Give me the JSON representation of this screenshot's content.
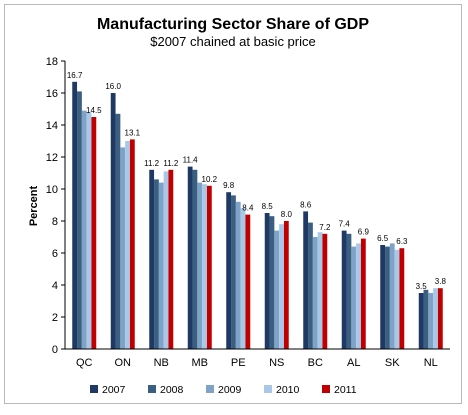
{
  "chart_data": {
    "type": "bar",
    "title": "Manufacturing Sector Share of GDP",
    "subtitle": "$2007 chained at basic price",
    "ylabel": "Percent",
    "xlabel": "",
    "ylim": [
      0,
      18
    ],
    "yticks": [
      0,
      2,
      4,
      6,
      8,
      10,
      12,
      14,
      16,
      18
    ],
    "grid": false,
    "legend_position": "bottom",
    "categories": [
      "QC",
      "ON",
      "NB",
      "MB",
      "PE",
      "NS",
      "BC",
      "AL",
      "SK",
      "NL"
    ],
    "series": [
      {
        "name": "2007",
        "color": "#1f3864",
        "values": [
          16.7,
          16.0,
          11.2,
          11.4,
          9.8,
          8.5,
          8.6,
          7.4,
          6.5,
          3.5
        ]
      },
      {
        "name": "2008",
        "color": "#3a5f80",
        "values": [
          16.1,
          14.7,
          10.6,
          11.2,
          9.6,
          8.3,
          7.9,
          7.2,
          6.4,
          3.7
        ]
      },
      {
        "name": "2009",
        "color": "#7fa3c6",
        "values": [
          14.9,
          12.6,
          10.4,
          10.4,
          9.2,
          7.4,
          7.0,
          6.4,
          6.6,
          3.5
        ]
      },
      {
        "name": "2010",
        "color": "#a9c8e8",
        "values": [
          14.8,
          13.0,
          11.1,
          10.3,
          8.8,
          7.8,
          7.3,
          6.6,
          6.2,
          3.8
        ]
      },
      {
        "name": "2011",
        "color": "#c00000",
        "values": [
          14.5,
          13.1,
          11.2,
          10.2,
          8.4,
          8.0,
          7.2,
          6.9,
          6.3,
          3.8
        ]
      }
    ],
    "data_labels": [
      {
        "category": "QC",
        "series": "2007",
        "text": "16.7"
      },
      {
        "category": "QC",
        "series": "2011",
        "text": "14.5"
      },
      {
        "category": "ON",
        "series": "2007",
        "text": "16.0"
      },
      {
        "category": "ON",
        "series": "2011",
        "text": "13.1"
      },
      {
        "category": "NB",
        "series": "2007",
        "text": "11.2"
      },
      {
        "category": "NB",
        "series": "2011",
        "text": "11.2"
      },
      {
        "category": "MB",
        "series": "2007",
        "text": "11.4"
      },
      {
        "category": "MB",
        "series": "2011",
        "text": "10.2"
      },
      {
        "category": "PE",
        "series": "2007",
        "text": "9.8"
      },
      {
        "category": "PE",
        "series": "2011",
        "text": "8.4"
      },
      {
        "category": "NS",
        "series": "2007",
        "text": "8.5"
      },
      {
        "category": "NS",
        "series": "2011",
        "text": "8.0"
      },
      {
        "category": "BC",
        "series": "2007",
        "text": "8.6"
      },
      {
        "category": "BC",
        "series": "2011",
        "text": "7.2"
      },
      {
        "category": "AL",
        "series": "2007",
        "text": "7.4"
      },
      {
        "category": "AL",
        "series": "2011",
        "text": "6.9"
      },
      {
        "category": "SK",
        "series": "2007",
        "text": "6.5"
      },
      {
        "category": "SK",
        "series": "2011",
        "text": "6.3"
      },
      {
        "category": "NL",
        "series": "2007",
        "text": "3.5"
      },
      {
        "category": "NL",
        "series": "2011",
        "text": "3.8"
      }
    ]
  }
}
